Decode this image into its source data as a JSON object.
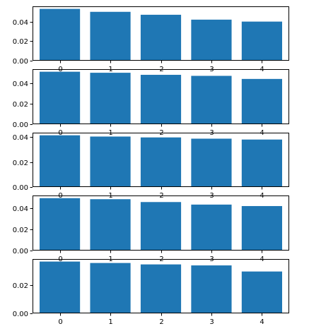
{
  "figure": {
    "background": "#ffffff",
    "bar_color": "#1f77b4",
    "axis_color": "#000000"
  },
  "chart_data": [
    {
      "type": "bar",
      "categories": [
        "0",
        "1",
        "2",
        "3",
        "4"
      ],
      "values": [
        0.053,
        0.05,
        0.047,
        0.042,
        0.04
      ],
      "yticks": [
        "0.00",
        "0.02",
        "0.04"
      ],
      "ytick_values": [
        0.0,
        0.02,
        0.04
      ],
      "ylim": [
        0,
        0.0556
      ],
      "title": "",
      "xlabel": "",
      "ylabel": ""
    },
    {
      "type": "bar",
      "categories": [
        "0",
        "1",
        "2",
        "3",
        "4"
      ],
      "values": [
        0.051,
        0.05,
        0.048,
        0.047,
        0.044
      ],
      "yticks": [
        "0.00",
        "0.02",
        "0.04"
      ],
      "ytick_values": [
        0.0,
        0.02,
        0.04
      ],
      "ylim": [
        0,
        0.0535
      ],
      "title": "",
      "xlabel": "",
      "ylabel": ""
    },
    {
      "type": "bar",
      "categories": [
        "0",
        "1",
        "2",
        "3",
        "4"
      ],
      "values": [
        0.0415,
        0.0405,
        0.0398,
        0.0388,
        0.0381
      ],
      "yticks": [
        "0.00",
        "0.02",
        "0.04"
      ],
      "ytick_values": [
        0.0,
        0.02,
        0.04
      ],
      "ylim": [
        0,
        0.0436
      ],
      "title": "",
      "xlabel": "",
      "ylabel": ""
    },
    {
      "type": "bar",
      "categories": [
        "0",
        "1",
        "2",
        "3",
        "4"
      ],
      "values": [
        0.0496,
        0.0486,
        0.0459,
        0.0435,
        0.0421
      ],
      "yticks": [
        "0.00",
        "0.02",
        "0.04"
      ],
      "ytick_values": [
        0.0,
        0.02,
        0.04
      ],
      "ylim": [
        0,
        0.0521
      ],
      "title": "",
      "xlabel": "",
      "ylabel": ""
    },
    {
      "type": "bar",
      "categories": [
        "0",
        "1",
        "2",
        "3",
        "4"
      ],
      "values": [
        0.0365,
        0.0355,
        0.0345,
        0.0338,
        0.0295
      ],
      "yticks": [
        "0.00",
        "0.02"
      ],
      "ytick_values": [
        0.0,
        0.02
      ],
      "ylim": [
        0,
        0.0383
      ],
      "title": "",
      "xlabel": "",
      "ylabel": ""
    }
  ]
}
